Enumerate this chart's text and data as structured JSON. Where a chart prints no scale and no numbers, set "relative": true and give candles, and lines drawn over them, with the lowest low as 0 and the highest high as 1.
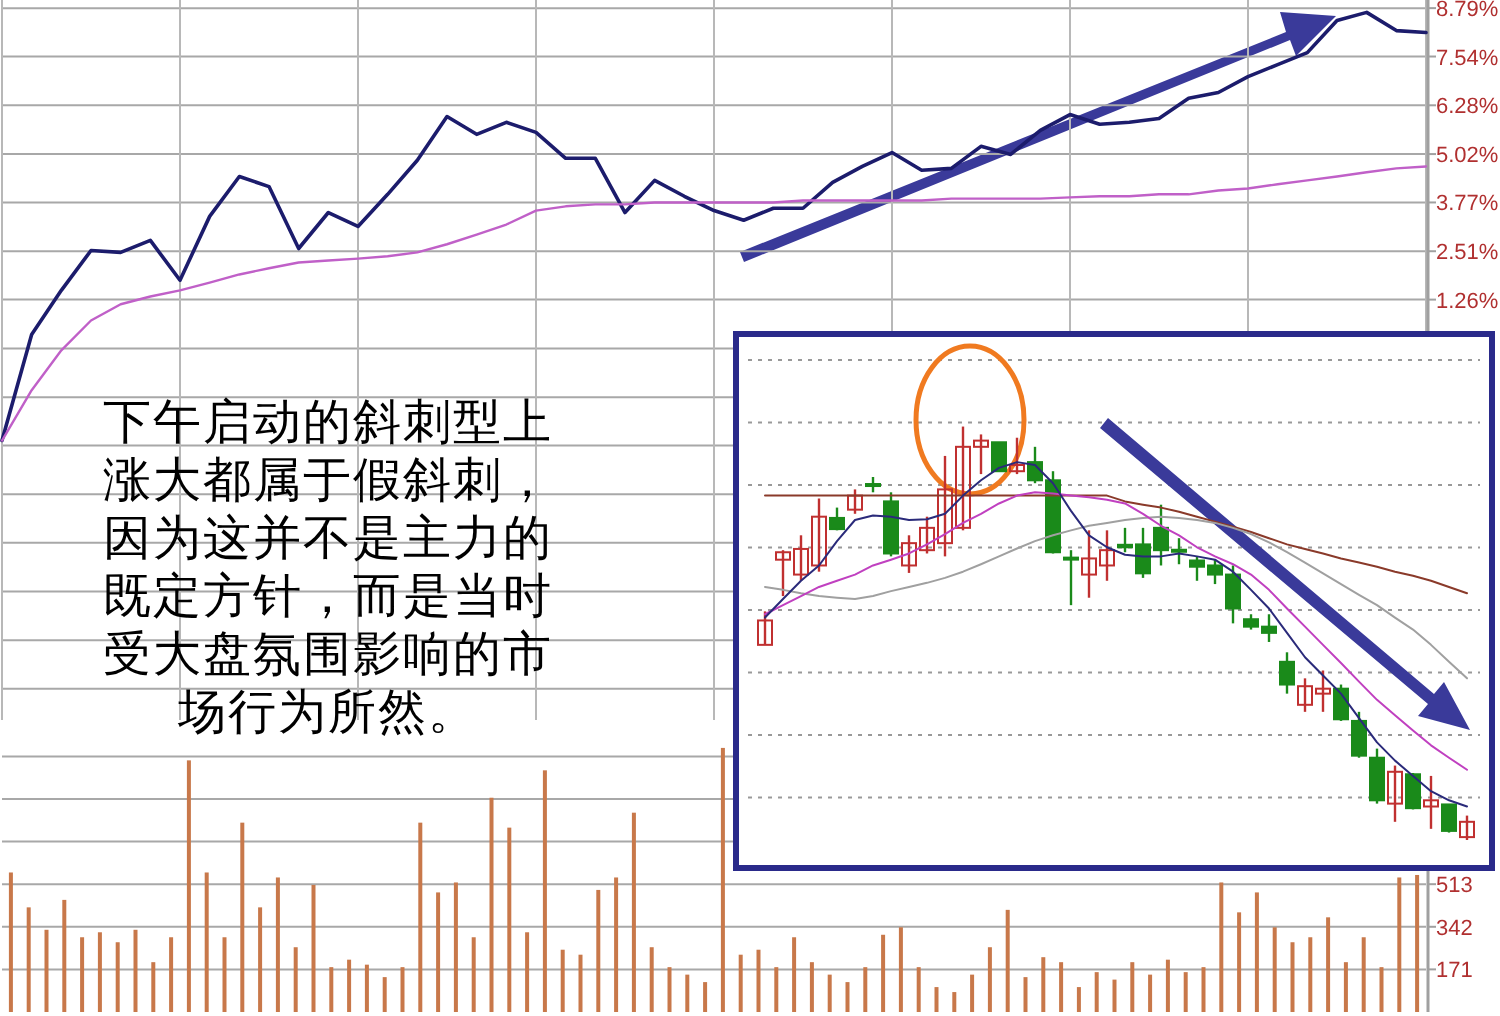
{
  "chart_data": [
    {
      "type": "line",
      "categories": [
        null,
        null,
        null,
        null,
        null,
        null,
        null,
        null,
        null,
        null,
        null,
        null,
        null,
        null,
        null,
        null,
        null,
        null,
        null,
        null,
        null,
        null,
        null,
        null,
        null,
        null,
        null,
        null,
        null,
        null,
        null,
        null,
        null,
        null,
        null,
        null,
        null,
        null,
        null,
        null,
        null,
        null,
        null,
        null,
        null,
        null,
        null,
        null,
        null
      ],
      "series": [
        {
          "color": "#1c1c6c",
          "values": [
            -2.38,
            0.36,
            1.5,
            2.53,
            2.48,
            2.79,
            1.76,
            3.41,
            4.44,
            4.18,
            2.58,
            3.51,
            3.15,
            3.98,
            4.86,
            5.99,
            5.53,
            5.84,
            5.58,
            4.91,
            4.91,
            3.51,
            4.34,
            3.93,
            3.56,
            3.31,
            3.62,
            3.62,
            4.29,
            4.7,
            5.06,
            4.6,
            4.65,
            5.22,
            5.01,
            5.63,
            6.04,
            5.79,
            5.84,
            5.94,
            6.46,
            6.61,
            7.02,
            7.33,
            7.64,
            8.47,
            8.68,
            8.21,
            8.16
          ]
        },
        {
          "color": "#c060c8",
          "values": [
            -2.38,
            -1.08,
            -0.05,
            0.72,
            1.14,
            1.34,
            1.5,
            1.7,
            1.91,
            2.07,
            2.22,
            2.27,
            2.32,
            2.38,
            2.48,
            2.69,
            2.94,
            3.2,
            3.56,
            3.67,
            3.72,
            3.72,
            3.77,
            3.77,
            3.77,
            3.77,
            3.77,
            3.82,
            3.82,
            3.82,
            3.82,
            3.82,
            3.87,
            3.87,
            3.87,
            3.87,
            3.9,
            3.93,
            3.93,
            3.98,
            3.98,
            4.08,
            4.13,
            4.24,
            4.34,
            4.44,
            4.55,
            4.65,
            4.7
          ]
        }
      ],
      "ylim": [
        -9.6,
        9.0
      ],
      "yticks": [
        {
          "value": 8.79,
          "label": "8.79%"
        },
        {
          "value": 7.54,
          "label": "7.54%"
        },
        {
          "value": 6.28,
          "label": "6.28%"
        },
        {
          "value": 5.02,
          "label": "5.02%"
        },
        {
          "value": 3.77,
          "label": "3.77%"
        },
        {
          "value": 2.51,
          "label": "2.51%"
        },
        {
          "value": 1.26,
          "label": "1.26%"
        },
        {
          "value": 0,
          "label": null
        },
        {
          "value": -1.26,
          "label": null
        },
        {
          "value": -2.51,
          "label": null
        },
        {
          "value": -3.77,
          "label": null
        },
        {
          "value": -5.02,
          "label": null
        },
        {
          "value": -6.28,
          "label": null
        },
        {
          "value": -7.54,
          "label": null
        },
        {
          "value": -8.79,
          "label": null
        }
      ],
      "grid": true,
      "annotations": [
        "下午启动的斜刺型上涨大都属于假斜刺，因为这并不是主力的既定方针，而是当时受大盘氛围影响的市场行为所然。"
      ]
    },
    {
      "type": "bar",
      "categories": [
        null,
        null,
        null,
        null,
        null,
        null,
        null,
        null,
        null,
        null,
        null,
        null,
        null,
        null,
        null,
        null,
        null,
        null,
        null,
        null,
        null,
        null,
        null,
        null,
        null,
        null,
        null,
        null,
        null,
        null,
        null,
        null,
        null,
        null,
        null,
        null,
        null,
        null,
        null,
        null,
        null,
        null,
        null,
        null,
        null,
        null,
        null,
        null,
        null,
        null,
        null,
        null,
        null,
        null,
        null,
        null,
        null,
        null,
        null,
        null,
        null,
        null,
        null,
        null,
        null,
        null,
        null,
        null,
        null,
        null,
        null,
        null,
        null,
        null,
        null,
        null,
        null,
        null,
        null,
        null
      ],
      "color": "#c8784a",
      "values": [
        560,
        420,
        330,
        450,
        300,
        320,
        280,
        330,
        200,
        300,
        1010,
        560,
        300,
        760,
        420,
        540,
        260,
        510,
        180,
        210,
        190,
        140,
        180,
        760,
        480,
        520,
        300,
        860,
        740,
        320,
        970,
        250,
        230,
        490,
        540,
        800,
        260,
        180,
        150,
        120,
        1060,
        230,
        250,
        180,
        300,
        200,
        150,
        120,
        180,
        310,
        340,
        180,
        100,
        80,
        150,
        260,
        410,
        140,
        220,
        200,
        100,
        160,
        130,
        200,
        150,
        210,
        160,
        180,
        520,
        400,
        480,
        340,
        280,
        300,
        380,
        200,
        300,
        180,
        540,
        550
      ],
      "ylim": [
        0,
        1172
      ],
      "yticks": [
        171,
        342,
        513,
        {
          "value": 684,
          "label": null
        },
        {
          "value": 855,
          "label": null
        },
        {
          "value": 1026,
          "label": null
        }
      ],
      "grid": "y"
    },
    {
      "type": "candlestick",
      "relative": true,
      "categories": [
        null,
        null,
        null,
        null,
        null,
        null,
        null,
        null,
        null,
        null,
        null,
        null,
        null,
        null,
        null,
        null,
        null,
        null,
        null,
        null,
        null,
        null,
        null,
        null,
        null,
        null,
        null,
        null,
        null,
        null,
        null,
        null,
        null,
        null,
        null,
        null,
        null,
        null,
        null,
        null
      ],
      "ohlc": [
        [
          0.472,
          0.553,
          0.472,
          0.531
        ],
        [
          0.678,
          0.701,
          0.59,
          0.696
        ],
        [
          0.642,
          0.737,
          0.627,
          0.704
        ],
        [
          0.664,
          0.826,
          0.649,
          0.782
        ],
        [
          0.779,
          0.804,
          0.749,
          0.752
        ],
        [
          0.799,
          0.848,
          0.789,
          0.833
        ],
        [
          0.861,
          0.878,
          0.841,
          0.86
        ],
        [
          0.819,
          0.841,
          0.686,
          0.693
        ],
        [
          0.664,
          0.737,
          0.646,
          0.718
        ],
        [
          0.701,
          0.782,
          0.693,
          0.755
        ],
        [
          0.718,
          0.929,
          0.686,
          0.848
        ],
        [
          0.755,
          1,
          0.749,
          0.951
        ],
        [
          0.951,
          0.981,
          0.885,
          0.966
        ],
        [
          0.962,
          0.962,
          0.892,
          0.892
        ],
        [
          0.892,
          0.973,
          0.885,
          0.907
        ],
        [
          0.914,
          0.951,
          0.863,
          0.87
        ],
        [
          0.87,
          0.892,
          0.693,
          0.696
        ],
        [
          0.683,
          0.701,
          0.568,
          0.68
        ],
        [
          0.642,
          0.749,
          0.586,
          0.681
        ],
        [
          0.664,
          0.749,
          0.627,
          0.701
        ],
        [
          0.714,
          0.755,
          0.696,
          0.708
        ],
        [
          0.715,
          0.755,
          0.634,
          0.645
        ],
        [
          0.755,
          0.811,
          0.664,
          0.701
        ],
        [
          0.702,
          0.73,
          0.667,
          0.699
        ],
        [
          0.676,
          0.686,
          0.627,
          0.661
        ],
        [
          0.664,
          0.678,
          0.619,
          0.642
        ],
        [
          0.642,
          0.664,
          0.524,
          0.56
        ],
        [
          0.534,
          0.546,
          0.509,
          0.516
        ],
        [
          0.516,
          0.546,
          0.479,
          0.501
        ],
        [
          0.431,
          0.454,
          0.354,
          0.376
        ],
        [
          0.327,
          0.391,
          0.31,
          0.372
        ],
        [
          0.354,
          0.41,
          0.31,
          0.366
        ],
        [
          0.366,
          0.376,
          0.288,
          0.292
        ],
        [
          0.288,
          0.31,
          0.199,
          0.204
        ],
        [
          0.199,
          0.221,
          0.088,
          0.096
        ],
        [
          0.088,
          0.18,
          0.044,
          0.165
        ],
        [
          0.159,
          0.162,
          0.074,
          0.077
        ],
        [
          0.081,
          0.155,
          0.027,
          0.096
        ],
        [
          0.086,
          0.086,
          0.018,
          0.022
        ],
        [
          0.007,
          0.059,
          0,
          0.044
        ]
      ],
      "series": [
        {
          "type": "line",
          "color": "#8a3a2a",
          "values": [
            0.833,
            0.833,
            0.833,
            0.833,
            0.833,
            0.833,
            0.833,
            0.833,
            0.833,
            0.833,
            0.833,
            0.833,
            0.833,
            0.833,
            0.833,
            0.833,
            0.833,
            0.833,
            0.833,
            0.833,
            0.819,
            0.811,
            0.804,
            0.794,
            0.782,
            0.77,
            0.758,
            0.745,
            0.73,
            0.715,
            0.704,
            0.693,
            0.681,
            0.671,
            0.661,
            0.649,
            0.639,
            0.627,
            0.612,
            0.597
          ]
        },
        {
          "type": "line",
          "color": "#a0a0a0",
          "values": [
            0.612,
            0.605,
            0.597,
            0.59,
            0.586,
            0.583,
            0.59,
            0.602,
            0.612,
            0.622,
            0.634,
            0.649,
            0.667,
            0.686,
            0.705,
            0.723,
            0.737,
            0.749,
            0.76,
            0.767,
            0.774,
            0.779,
            0.782,
            0.779,
            0.774,
            0.767,
            0.755,
            0.74,
            0.72,
            0.696,
            0.671,
            0.645,
            0.619,
            0.593,
            0.568,
            0.538,
            0.509,
            0.472,
            0.431,
            0.391
          ]
        },
        {
          "type": "line",
          "color": "#c040c0",
          "values": [
            0.546,
            0.568,
            0.59,
            0.612,
            0.627,
            0.642,
            0.664,
            0.678,
            0.693,
            0.715,
            0.74,
            0.767,
            0.789,
            0.814,
            0.833,
            0.841,
            0.838,
            0.833,
            0.829,
            0.823,
            0.814,
            0.789,
            0.76,
            0.737,
            0.708,
            0.686,
            0.667,
            0.642,
            0.605,
            0.56,
            0.516,
            0.472,
            0.428,
            0.383,
            0.339,
            0.302,
            0.265,
            0.229,
            0.199,
            0.17
          ]
        },
        {
          "type": "line",
          "color": "#2a2a7a",
          "values": [
            0.538,
            0.583,
            0.627,
            0.664,
            0.723,
            0.774,
            0.785,
            0.782,
            0.774,
            0.776,
            0.789,
            0.833,
            0.87,
            0.9,
            0.914,
            0.907,
            0.863,
            0.796,
            0.737,
            0.708,
            0.69,
            0.686,
            0.686,
            0.693,
            0.686,
            0.678,
            0.649,
            0.605,
            0.56,
            0.501,
            0.442,
            0.398,
            0.354,
            0.295,
            0.236,
            0.192,
            0.155,
            0.118,
            0.096,
            0.081
          ]
        }
      ],
      "grid": "y"
    }
  ]
}
